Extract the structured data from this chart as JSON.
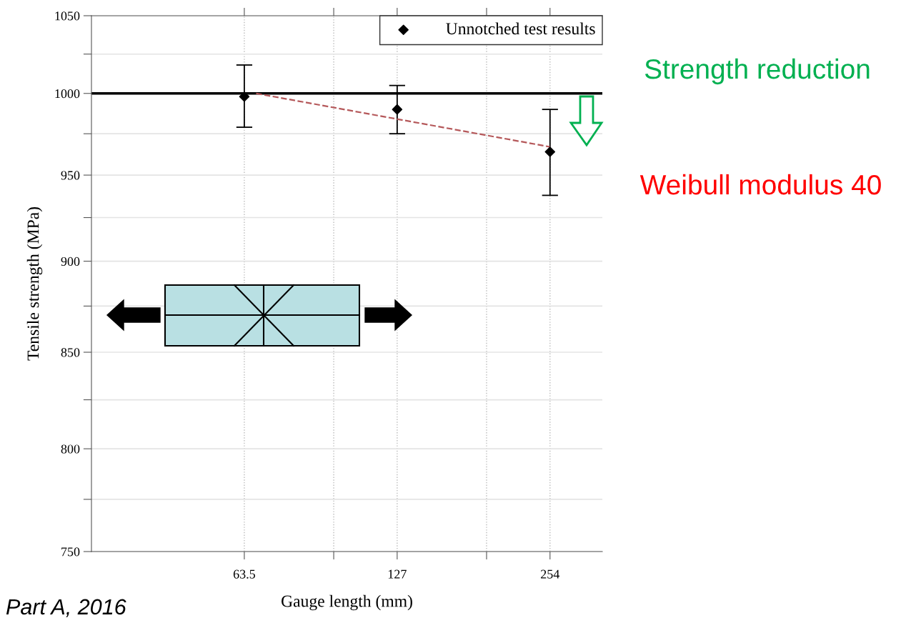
{
  "chart_data": {
    "type": "scatter",
    "xlabel": "Gauge length (mm)",
    "ylabel": "Tensile strength (MPa)",
    "log": "xy",
    "xlim": [
      31.75,
      322
    ],
    "xticks": [
      63.5,
      {
        "value": 95.25,
        "label": null
      },
      127,
      {
        "value": 190.5,
        "label": null
      },
      254
    ],
    "ylim": [
      750,
      1050
    ],
    "yticks": [
      750,
      {
        "value": 775,
        "label": null
      },
      800,
      {
        "value": 825,
        "label": null
      },
      850,
      {
        "value": 875,
        "label": null
      },
      900,
      {
        "value": 925,
        "label": null
      },
      950,
      {
        "value": 975,
        "label": null
      },
      1000,
      {
        "value": 1025,
        "label": null
      },
      1050
    ],
    "grid": true,
    "legend": "top right",
    "series": [
      {
        "name": "Unnotched test results",
        "marker": "diamond",
        "color": "#000000",
        "x": [
          63.5,
          127,
          254
        ],
        "values": [
          998,
          990,
          964
        ],
        "errors": [
          [
            979,
            1018
          ],
          [
            975,
            1005
          ],
          [
            938,
            990
          ]
        ]
      },
      {
        "type": "line",
        "color": "#b5585a",
        "line_style": "dashed",
        "x": [
          67,
          254
        ],
        "values": [
          1000,
          967
        ]
      }
    ],
    "ref_lines": [
      {
        "axis": "y",
        "value": 1000,
        "color": "#000000"
      }
    ],
    "annotations": [
      "Strength reduction",
      "Weibull modulus 40",
      "Part A, 2016"
    ]
  }
}
